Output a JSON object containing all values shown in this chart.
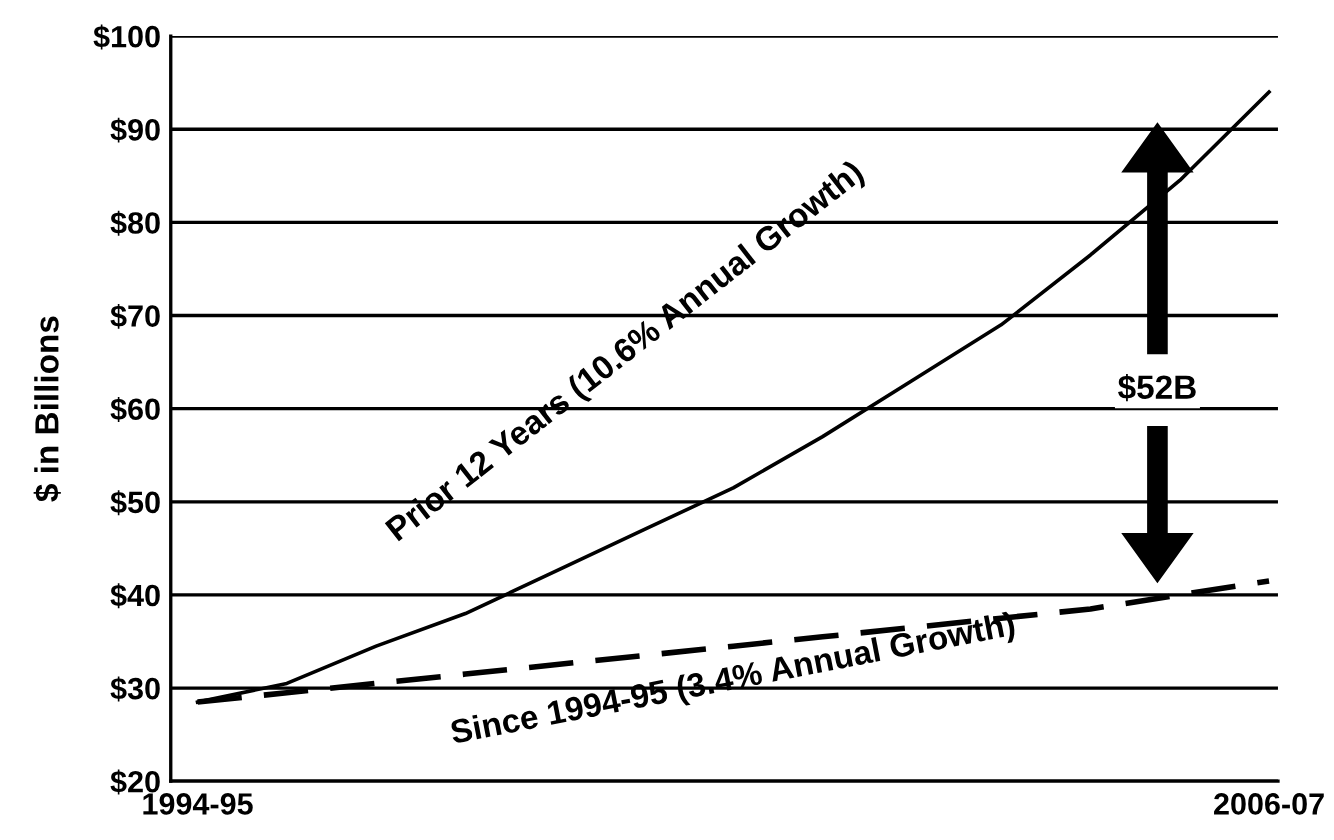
{
  "chart_data": {
    "type": "line",
    "ylabel": "$ in Billions",
    "categories": [
      "1994-95",
      null,
      null,
      null,
      null,
      null,
      null,
      null,
      null,
      null,
      null,
      null,
      "2006-07"
    ],
    "series": [
      {
        "name": "Prior 12 Years (10.6% Annual Growth)",
        "color": "#000000",
        "line_style": "solid",
        "values": [
          28.5,
          30.5,
          34.5,
          38,
          42.5,
          47,
          51.5,
          57,
          63,
          69,
          76.5,
          84.5,
          94
        ]
      },
      {
        "name": "Since 1994-95 (3.4% Annual Growth)",
        "color": "#000000",
        "line_style": "dashed",
        "values": [
          28.5,
          29.5,
          30.5,
          31.5,
          32.5,
          33.5,
          34.5,
          35.5,
          36.5,
          37.5,
          38.5,
          40,
          41.5
        ]
      }
    ],
    "ylim": [
      20,
      100
    ],
    "yticks": [
      {
        "value": 20,
        "label": "$20"
      },
      {
        "value": 30,
        "label": "$30"
      },
      {
        "value": 40,
        "label": "$40"
      },
      {
        "value": 50,
        "label": "$50"
      },
      {
        "value": 60,
        "label": "$60"
      },
      {
        "value": 70,
        "label": "$70"
      },
      {
        "value": 80,
        "label": "$80"
      },
      {
        "value": 90,
        "label": "$90"
      },
      {
        "value": 100,
        "label": "$100"
      }
    ],
    "grid": "y",
    "legend": false,
    "marker": "none",
    "annotations": [
      "$52B"
    ]
  }
}
